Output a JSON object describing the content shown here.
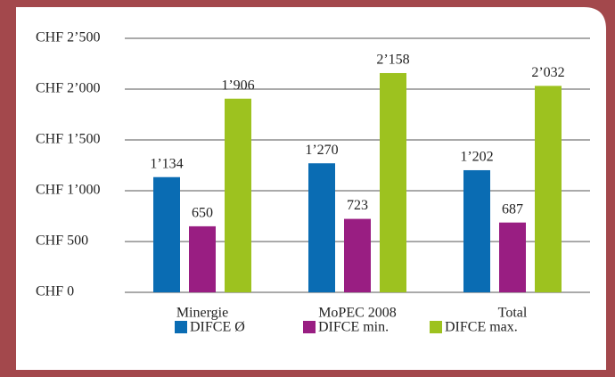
{
  "chart_data": {
    "type": "bar",
    "categories": [
      "Minergie",
      "MoPEC 2008",
      "Total"
    ],
    "series": [
      {
        "name": "DIFCE Ø",
        "color": "#0a6cb3",
        "values": [
          1134,
          1270,
          1202
        ],
        "value_labels": [
          "1’134",
          "1’270",
          "1’202"
        ]
      },
      {
        "name": "DIFCE min.",
        "color": "#991e82",
        "values": [
          650,
          723,
          687
        ],
        "value_labels": [
          "650",
          "723",
          "687"
        ]
      },
      {
        "name": "DIFCE max.",
        "color": "#9dc21f",
        "values": [
          1906,
          2158,
          2032
        ],
        "value_labels": [
          "1’906",
          "2’158",
          "2’032"
        ]
      }
    ],
    "ylim": [
      0,
      2500
    ],
    "yticks": [
      {
        "value": 0,
        "label": "CHF 0"
      },
      {
        "value": 500,
        "label": "CHF 500"
      },
      {
        "value": 1000,
        "label": "CHF 1’000"
      },
      {
        "value": 1500,
        "label": "CHF 1’500"
      },
      {
        "value": 2000,
        "label": "CHF 2’000"
      },
      {
        "value": 2500,
        "label": "CHF 2’500"
      }
    ],
    "grid": true,
    "legend": "bottom"
  }
}
